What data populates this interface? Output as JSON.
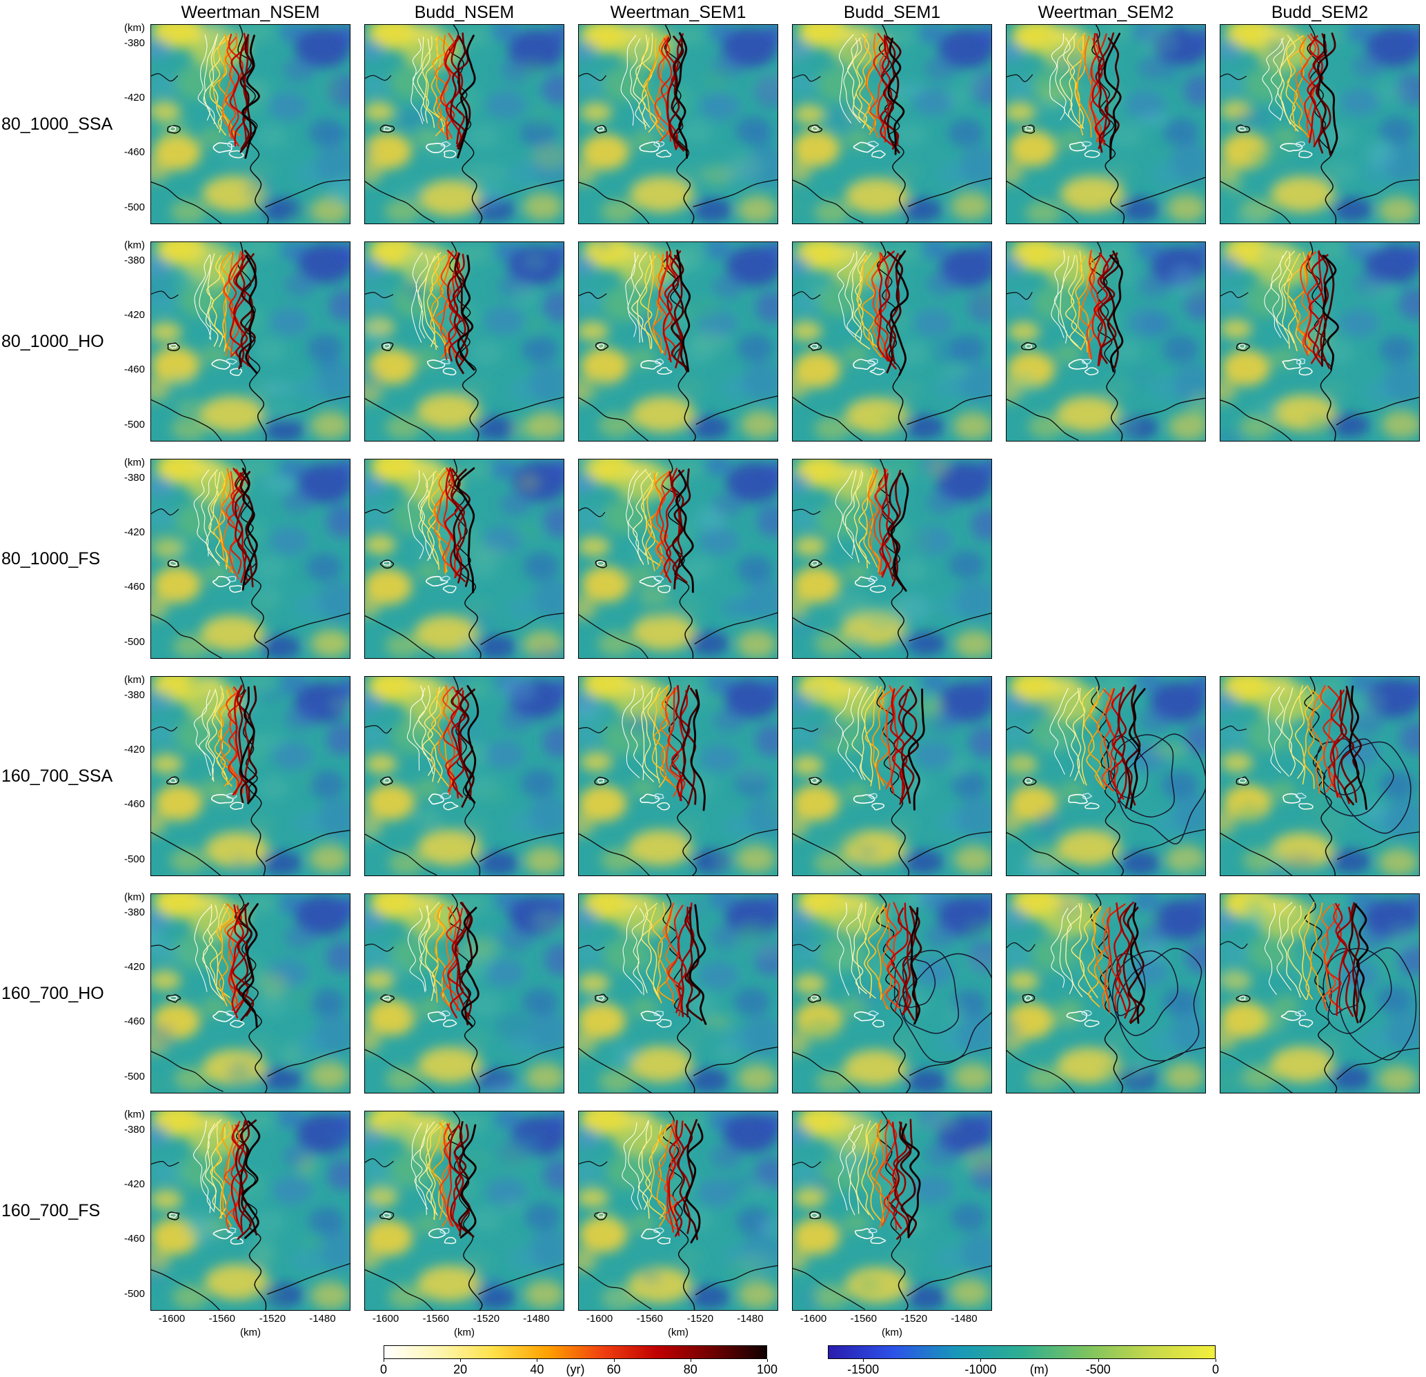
{
  "figure": {
    "columns": [
      "Weertman_NSEM",
      "Budd_NSEM",
      "Weertman_SEM1",
      "Budd_SEM1",
      "Weertman_SEM2",
      "Budd_SEM2"
    ],
    "rows": [
      {
        "label": "80_1000_SSA",
        "panels": [
          1,
          1,
          1,
          1,
          1,
          1
        ]
      },
      {
        "label": "80_1000_HO",
        "panels": [
          1,
          1,
          1,
          1,
          1,
          1
        ]
      },
      {
        "label": "80_1000_FS",
        "panels": [
          1,
          1,
          1,
          1,
          0,
          0
        ]
      },
      {
        "label": "160_700_SSA",
        "panels": [
          1,
          1,
          1,
          1,
          1,
          1
        ]
      },
      {
        "label": "160_700_HO",
        "panels": [
          1,
          1,
          1,
          1,
          1,
          1
        ]
      },
      {
        "label": "160_700_FS",
        "panels": [
          1,
          1,
          1,
          1,
          0,
          0
        ]
      }
    ],
    "y_axis": {
      "unit": "(km)",
      "ticks": [
        "-380",
        "-420",
        "-460",
        "-500"
      ]
    },
    "x_axis": {
      "unit": "(km)",
      "ticks": [
        "-1600",
        "-1560",
        "-1520",
        "-1480"
      ]
    },
    "colorbar_time": {
      "unit": "(yr)",
      "ticks": [
        "0",
        "20",
        "40",
        "60",
        "80",
        "100"
      ]
    },
    "colorbar_elev": {
      "unit": "(m)",
      "ticks": [
        "-1500",
        "-1000",
        "-500",
        "0"
      ]
    }
  },
  "chart_data": {
    "type": "heatmap",
    "title": "",
    "panel_grid": {
      "columns": [
        "Weertman_NSEM",
        "Budd_NSEM",
        "Weertman_SEM1",
        "Budd_SEM1",
        "Weertman_SEM2",
        "Budd_SEM2"
      ],
      "rows": [
        "80_1000_SSA",
        "80_1000_HO",
        "80_1000_FS",
        "160_700_SSA",
        "160_700_HO",
        "160_700_FS"
      ],
      "present": [
        [
          1,
          1,
          1,
          1,
          1,
          1
        ],
        [
          1,
          1,
          1,
          1,
          1,
          1
        ],
        [
          1,
          1,
          1,
          1,
          0,
          0
        ],
        [
          1,
          1,
          1,
          1,
          1,
          1
        ],
        [
          1,
          1,
          1,
          1,
          1,
          1
        ],
        [
          1,
          1,
          1,
          1,
          0,
          0
        ]
      ]
    },
    "x_axis": {
      "label": "(km)",
      "ticks": [
        -1600,
        -1560,
        -1520,
        -1480
      ],
      "range": [
        -1617,
        -1458
      ]
    },
    "y_axis": {
      "label": "(km)",
      "ticks": [
        -380,
        -420,
        -460,
        -500
      ],
      "range": [
        -512,
        -366
      ]
    },
    "colorbars": [
      {
        "label": "(yr)",
        "ticks": [
          0,
          20,
          40,
          60,
          80,
          100
        ],
        "range": [
          0,
          100
        ],
        "colors": [
          "#ffffff",
          "#fdf6b0",
          "#ffe14a",
          "#ffa000",
          "#f04010",
          "#c00000",
          "#700000",
          "#100000"
        ]
      },
      {
        "label": "(m)",
        "ticks": [
          -1500,
          -1000,
          -500,
          0
        ],
        "range": [
          -1650,
          0
        ],
        "colors": [
          "#2a1cae",
          "#2c52e8",
          "#1898b8",
          "#2fae91",
          "#7cc360",
          "#c6d84b",
          "#f4ef3c"
        ]
      }
    ],
    "legend_position": "bottom",
    "grid_lines": false
  }
}
